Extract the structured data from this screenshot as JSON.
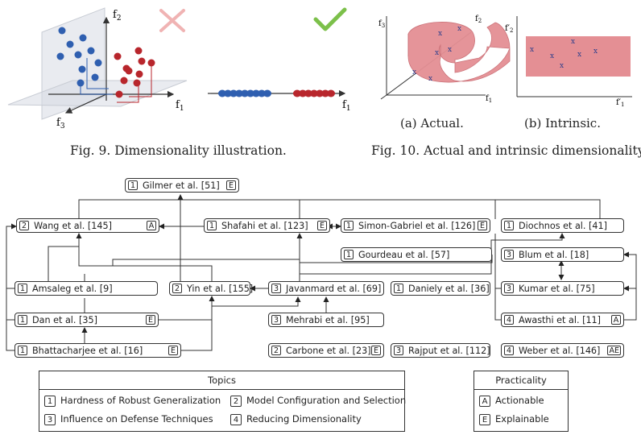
{
  "fig9": {
    "caption": "Fig. 9.  Dimensionality illustration.",
    "axis_f1": "f",
    "axis_f1_sub": "1",
    "axis_f2": "f",
    "axis_f2_sub": "2",
    "axis_f3": "f",
    "axis_f3_sub": "3",
    "axis_1d_f1": "f",
    "axis_1d_f1_sub": "1",
    "colors": {
      "blue": "#2f5fb0",
      "red": "#b8262c",
      "cross": "#f0b3b3",
      "check": "#7cc04a"
    }
  },
  "fig10": {
    "caption": "Fig. 10.  Actual and intrinsic dimensionality.",
    "sub_a": "(a) Actual.",
    "sub_b": "(b) Intrinsic.",
    "axis_a_f1": "f",
    "axis_a_f1_sub": "1",
    "axis_a_f2": "f",
    "axis_a_f2_sub": "2",
    "axis_a_f3": "f",
    "axis_a_f3_sub": "3",
    "axis_b_x": "f′",
    "axis_b_x_sub": "1",
    "axis_b_y": "f′",
    "axis_b_y_sub": "2",
    "marker": "x",
    "colors": {
      "manifold": "#e48f94",
      "marker": "#2c3e8c"
    }
  },
  "papers": [
    {
      "id": "gilmer",
      "topic": "1",
      "label": "Gilmer et al. [51]",
      "prac": "E"
    },
    {
      "id": "wang",
      "topic": "2",
      "label": "Wang et al. [145]",
      "prac": "A"
    },
    {
      "id": "shafahi",
      "topic": "1",
      "label": "Shafahi et al. [123]",
      "prac": "E"
    },
    {
      "id": "simon",
      "topic": "1",
      "label": "Simon-Gabriel et al. [126]",
      "prac": "E"
    },
    {
      "id": "diochnos",
      "topic": "1",
      "label": "Diochnos et al. [41]",
      "prac": ""
    },
    {
      "id": "gourdeau",
      "topic": "1",
      "label": "Gourdeau et al. [57]",
      "prac": ""
    },
    {
      "id": "blum",
      "topic": "3",
      "label": "Blum et al. [18]",
      "prac": ""
    },
    {
      "id": "amsaleg",
      "topic": "1",
      "label": "Amsaleg et al. [9]",
      "prac": ""
    },
    {
      "id": "yin",
      "topic": "2",
      "label": "Yin et al. [155]",
      "prac": ""
    },
    {
      "id": "javanmard",
      "topic": "3",
      "label": "Javanmard et al. [69]",
      "prac": ""
    },
    {
      "id": "daniely",
      "topic": "1",
      "label": "Daniely et al. [36]",
      "prac": ""
    },
    {
      "id": "kumar",
      "topic": "3",
      "label": "Kumar et al. [75]",
      "prac": ""
    },
    {
      "id": "dan",
      "topic": "1",
      "label": "Dan et al. [35]",
      "prac": "E"
    },
    {
      "id": "mehrabi",
      "topic": "3",
      "label": "Mehrabi et al. [95]",
      "prac": ""
    },
    {
      "id": "awasthi",
      "topic": "4",
      "label": "Awasthi et al. [11]",
      "prac": "A"
    },
    {
      "id": "bhattacharjee",
      "topic": "1",
      "label": "Bhattacharjee et al. [16]",
      "prac": "E"
    },
    {
      "id": "carbone",
      "topic": "2",
      "label": "Carbone et al. [23]",
      "prac": "E"
    },
    {
      "id": "rajput",
      "topic": "3",
      "label": "Rajput et al. [112]",
      "prac": ""
    },
    {
      "id": "weber",
      "topic": "4",
      "label": "Weber et al. [146]",
      "prac": "AE"
    }
  ],
  "topics_legend": {
    "title": "Topics",
    "items": [
      {
        "num": "1",
        "label": "Hardness of Robust Generalization"
      },
      {
        "num": "2",
        "label": "Model Configuration and Selection"
      },
      {
        "num": "3",
        "label": "Influence on Defense Techniques"
      },
      {
        "num": "4",
        "label": "Reducing Dimensionality"
      }
    ]
  },
  "practicality_legend": {
    "title": "Practicality",
    "items": [
      {
        "num": "A",
        "label": "Actionable"
      },
      {
        "num": "E",
        "label": "Explainable"
      }
    ]
  }
}
